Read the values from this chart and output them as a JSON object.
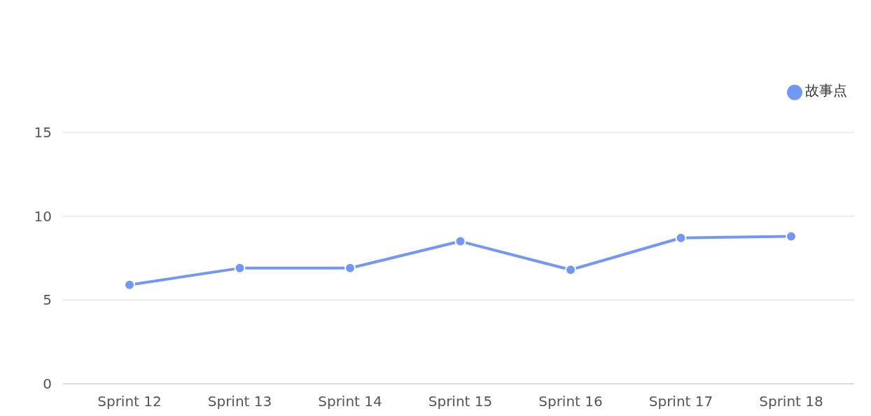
{
  "chart_data": {
    "type": "line",
    "categories": [
      "Sprint 12",
      "Sprint 13",
      "Sprint 14",
      "Sprint 15",
      "Sprint 16",
      "Sprint 17",
      "Sprint 18"
    ],
    "series": [
      {
        "name": "故事点",
        "color": "#7397f5",
        "values": [
          5.9,
          6.9,
          6.9,
          8.5,
          6.8,
          8.7,
          8.8
        ]
      }
    ],
    "ylim": [
      0,
      15
    ],
    "yticks": [
      0,
      5,
      10,
      15
    ],
    "grid": "y",
    "legend": "top right",
    "marker": "circle",
    "line_style": "solid"
  }
}
